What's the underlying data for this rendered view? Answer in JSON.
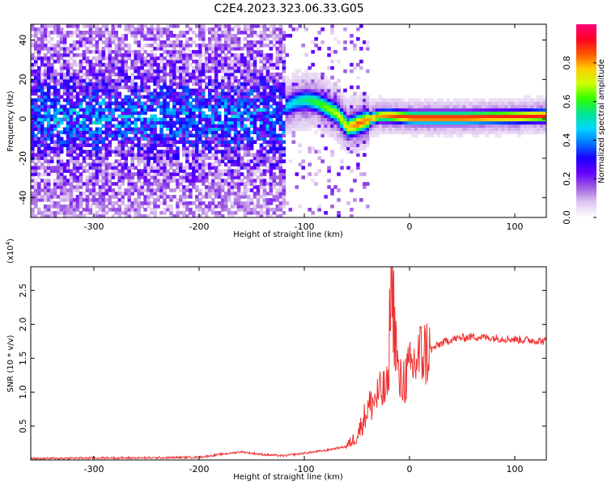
{
  "title": "C2E4.2023.323.06.33.G05",
  "colors": {
    "snr_line": "#ee3333",
    "frame": "#000000"
  },
  "chart_data": [
    {
      "type": "heatmap",
      "xlabel": "Height of straight line (km)",
      "ylabel": "Frequency (Hz)",
      "xlim": [
        -360,
        130
      ],
      "ylim": [
        -50,
        48
      ],
      "xticks": [
        -300,
        -200,
        -100,
        0,
        100
      ],
      "yticks": [
        -40,
        -20,
        0,
        20,
        40
      ],
      "colorbar": {
        "label": "Normalized spectral amplitude",
        "range": [
          0.0,
          1.0
        ],
        "ticks": [
          "0.0",
          "0.2",
          "0.4",
          "0.6",
          "0.8"
        ],
        "colormap": [
          "#ffffff",
          "#e0c8f0",
          "#a060e0",
          "#6600ff",
          "#1a00ff",
          "#0077ff",
          "#00d8ff",
          "#00e68c",
          "#33ff00",
          "#ccff00",
          "#ffcc00",
          "#ff5500",
          "#ff0022",
          "#ff007a"
        ]
      },
      "ridge": [
        {
          "x": -120,
          "y": 5,
          "amp": 0.45
        },
        {
          "x": -110,
          "y": 8,
          "amp": 0.5
        },
        {
          "x": -100,
          "y": 9,
          "amp": 0.55
        },
        {
          "x": -90,
          "y": 8,
          "amp": 0.6
        },
        {
          "x": -80,
          "y": 5,
          "amp": 0.65
        },
        {
          "x": -70,
          "y": 2,
          "amp": 0.7
        },
        {
          "x": -60,
          "y": -5,
          "amp": 0.75
        },
        {
          "x": -50,
          "y": -3,
          "amp": 0.85
        },
        {
          "x": -40,
          "y": -1,
          "amp": 0.8
        },
        {
          "x": -30,
          "y": 1,
          "amp": 0.8
        },
        {
          "x": -20,
          "y": 1,
          "amp": 0.85
        },
        {
          "x": 0,
          "y": 0,
          "amp": 0.9
        },
        {
          "x": 50,
          "y": 0,
          "amp": 0.9
        },
        {
          "x": 100,
          "y": 0.5,
          "amp": 0.9
        },
        {
          "x": 130,
          "y": 1,
          "amp": 0.9
        }
      ]
    },
    {
      "type": "line",
      "xlabel": "Height of straight line (km)",
      "ylabel": "SNR (10 * v/v)",
      "multiplier": "(x10",
      "multiplier_exp": "4",
      "multiplier_close": ")",
      "xlim": [
        -360,
        130
      ],
      "ylim": [
        0,
        2.85
      ],
      "xticks": [
        -300,
        -200,
        -100,
        0,
        100
      ],
      "yticks": [
        "0.5",
        "1.0",
        "1.5",
        "2.0",
        "2.5"
      ],
      "series": [
        {
          "x": [
            -360,
            -300,
            -250,
            -200,
            -180,
            -160,
            -140,
            -120,
            -100,
            -80,
            -60,
            -50,
            -40,
            -30,
            -20,
            -18,
            -10,
            0,
            10,
            20,
            30,
            40,
            60,
            80,
            100,
            120,
            130
          ],
          "y": [
            0.02,
            0.03,
            0.03,
            0.04,
            0.08,
            0.12,
            0.08,
            0.06,
            0.1,
            0.14,
            0.2,
            0.35,
            0.75,
            0.95,
            1.05,
            2.85,
            1.1,
            1.3,
            1.55,
            1.62,
            1.72,
            1.78,
            1.82,
            1.8,
            1.78,
            1.76,
            1.75
          ]
        }
      ]
    }
  ]
}
